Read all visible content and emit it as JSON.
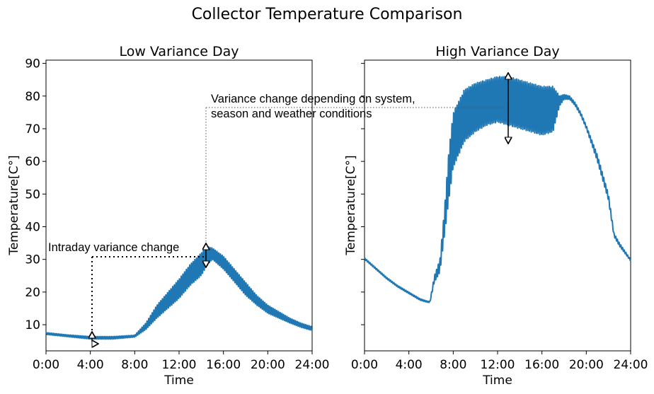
{
  "title": "Collector Temperature Comparison",
  "chart_data": [
    {
      "type": "line",
      "title": "Low Variance Day",
      "xlabel": "Time",
      "ylabel": "Temperature[C°]",
      "x_ticks": [
        "0:00",
        "4:00",
        "8:00",
        "12:00",
        "16:00",
        "20:00",
        "24:00"
      ],
      "y_ticks": [
        "10",
        "20",
        "30",
        "40",
        "50",
        "60",
        "70",
        "80",
        "90"
      ],
      "xlim_hours": [
        0,
        24
      ],
      "ylim": [
        2,
        91
      ],
      "grid": false,
      "series_color": "#1f77b4",
      "envelope": {
        "hours": [
          0,
          2,
          4,
          6,
          8,
          9,
          10,
          11,
          12,
          13,
          14,
          14.5,
          15,
          16,
          17,
          18,
          19,
          20,
          21,
          22,
          23,
          24
        ],
        "low": [
          7,
          6.3,
          5.6,
          5.6,
          6.2,
          8.5,
          12,
          15,
          18,
          22,
          25,
          28,
          30,
          27,
          23,
          19,
          16,
          13.5,
          12,
          10.5,
          9.2,
          8.2
        ],
        "high": [
          7.6,
          6.9,
          6.4,
          6.4,
          6.8,
          10.5,
          16,
          20,
          24,
          28.5,
          32,
          34,
          33.5,
          31,
          27,
          23,
          19,
          16,
          14,
          12,
          10.5,
          9.4
        ]
      },
      "annotation": "Intraday variance change"
    },
    {
      "type": "line",
      "title": "High Variance Day",
      "xlabel": "Time",
      "ylabel": "Temperature[C°]",
      "x_ticks": [
        "0:00",
        "4:00",
        "8:00",
        "12:00",
        "16:00",
        "20:00",
        "24:00"
      ],
      "xlim_hours": [
        0,
        24
      ],
      "ylim": [
        2,
        91
      ],
      "grid": false,
      "series_color": "#1f77b4",
      "envelope": {
        "hours": [
          0,
          1,
          2,
          3,
          4,
          5,
          5.7,
          5.9,
          6.3,
          6.8,
          7.2,
          7.6,
          8,
          9,
          10,
          11,
          12,
          13,
          14,
          15,
          16,
          17,
          17.6,
          18,
          18.5,
          19,
          19.5,
          20,
          21,
          22,
          22.5,
          23,
          24
        ],
        "low": [
          30,
          27,
          24,
          21.5,
          19.5,
          17.5,
          16.8,
          16.8,
          23,
          26,
          37,
          48,
          58,
          66,
          69,
          71,
          72,
          71,
          70,
          69,
          68,
          69,
          77,
          79,
          79,
          77,
          74,
          70,
          60,
          48,
          37,
          34,
          29.5
        ],
        "high": [
          30.5,
          27.5,
          24.5,
          22,
          20,
          18,
          17.2,
          17.2,
          25,
          30,
          45,
          63,
          75,
          82,
          84,
          85,
          86,
          86,
          85,
          84,
          83,
          83,
          80,
          80.5,
          80,
          78,
          75,
          71,
          62,
          50,
          38,
          35,
          30
        ]
      },
      "annotation": "Variance change depending on system, season and weather conditions",
      "annotation_lines": [
        "Variance change depending on system,",
        "season and weather conditions"
      ]
    }
  ]
}
